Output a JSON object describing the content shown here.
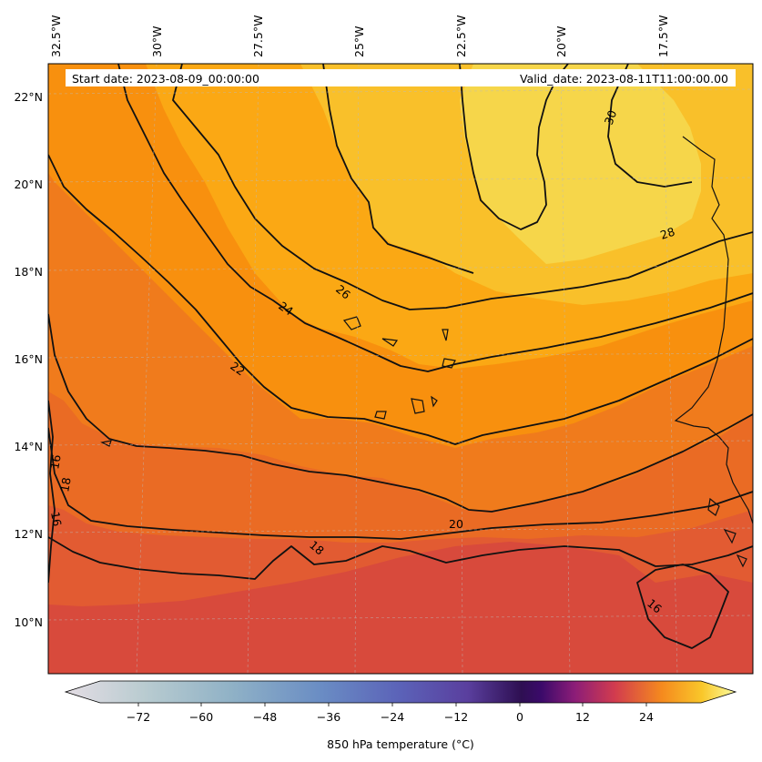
{
  "header": {
    "start_label": "Start date: 2023-08-09_00:00:00",
    "valid_label": "Valid_date: 2023-08-11T11:00:00.00"
  },
  "map": {
    "lon_labels": [
      "32.5°W",
      "30°W",
      "27.5°W",
      "25°W",
      "22.5°W",
      "20°W",
      "17.5°W"
    ],
    "lat_labels": [
      "22°N",
      "20°N",
      "18°N",
      "16°N",
      "14°N",
      "12°N",
      "10°N"
    ],
    "contour_labels": [
      {
        "text": "30"
      },
      {
        "text": "28"
      },
      {
        "text": "26"
      },
      {
        "text": "24"
      },
      {
        "text": "22"
      },
      {
        "text": "20"
      },
      {
        "text": "18"
      },
      {
        "text": "18"
      },
      {
        "text": "16"
      },
      {
        "text": "16"
      },
      {
        "text": "16"
      }
    ]
  },
  "colorbar": {
    "ticks": [
      "−72",
      "−60",
      "−48",
      "−36",
      "−24",
      "−12",
      "0",
      "12",
      "24"
    ],
    "label": "850 hPa temperature ($^\\circ$C)",
    "label_display": "850 hPa temperature (°C)"
  },
  "colors": {
    "c30": "#f6d64a",
    "c28": "#f9c02a",
    "c26": "#fba814",
    "c24": "#f8900e",
    "c22": "#f07b1c",
    "c20": "#ea6b24",
    "c18": "#e25b32",
    "c16": "#d84a3c"
  }
}
